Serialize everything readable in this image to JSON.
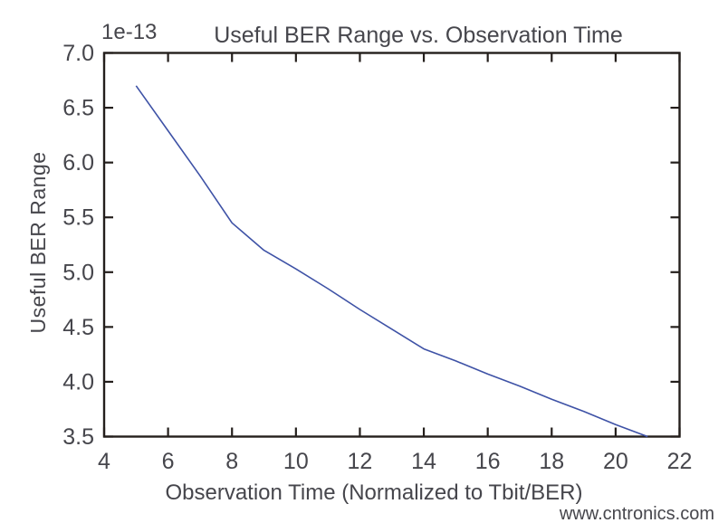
{
  "figure": {
    "background": "#ffffff"
  },
  "colors": {
    "axis": "#241f1c",
    "text": "#46464c",
    "line": "#3e52a6",
    "watermark": "#b6deb6",
    "background": "#ffffff"
  },
  "watermark": {
    "text": "www.cntronics.com"
  },
  "chart_data": {
    "type": "line",
    "title": "Useful BER Range vs. Observation Time",
    "xlabel": "Observation Time (Normalized to Tbit/BER)",
    "ylabel": "Useful BER Range",
    "y_scale_offset_label": "1e-13",
    "xlim": [
      4,
      22
    ],
    "ylim": [
      3.5,
      7.0
    ],
    "x_ticks": [
      4,
      6,
      8,
      10,
      12,
      14,
      16,
      18,
      20,
      22
    ],
    "x_tick_labels": [
      "4",
      "6",
      "8",
      "10",
      "12",
      "14",
      "16",
      "18",
      "20",
      "22"
    ],
    "y_ticks": [
      3.5,
      4.0,
      4.5,
      5.0,
      5.5,
      6.0,
      6.5,
      7.0
    ],
    "y_tick_labels": [
      "3.5",
      "4.0",
      "4.5",
      "5.0",
      "5.5",
      "6.0",
      "6.5",
      "7.0"
    ],
    "grid": false,
    "legend": "none",
    "ticks_direction": "in",
    "series": [
      {
        "name": "Useful BER Range",
        "color": "#3e52a6",
        "x": [
          5,
          6,
          7,
          8,
          9,
          10,
          11,
          12,
          13,
          14,
          15,
          16,
          17,
          18,
          19,
          20,
          21
        ],
        "y": [
          6.7,
          6.29,
          5.88,
          5.45,
          5.2,
          5.03,
          4.85,
          4.66,
          4.48,
          4.3,
          4.19,
          4.07,
          3.96,
          3.84,
          3.73,
          3.61,
          3.5
        ]
      }
    ]
  }
}
